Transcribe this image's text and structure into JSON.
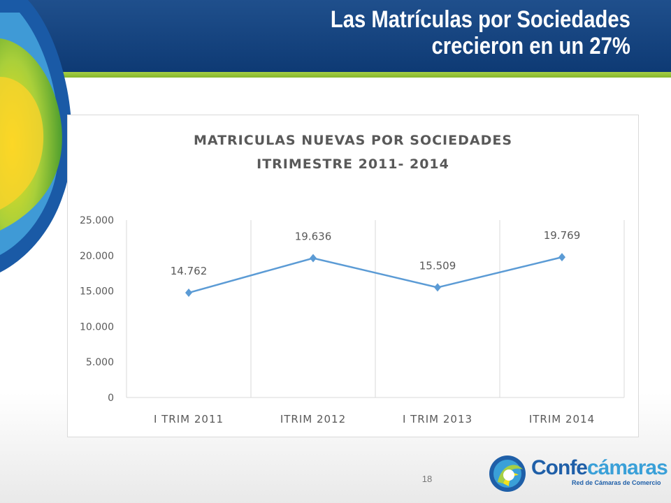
{
  "slide": {
    "title_line1": "Las Matrículas por Sociedades",
    "title_line2": "crecieron en un 27%",
    "page_number": "18"
  },
  "logo": {
    "name_part1": "Confe",
    "name_part2": "cámaras",
    "subtitle": "Red de Cámaras de Comercio"
  },
  "colors": {
    "header_blue": "#0e3a74",
    "header_green": "#9bc43a",
    "series_line": "#5b9bd5",
    "text_gray": "#595959",
    "grid": "#d9d9d9"
  },
  "chart_data": {
    "type": "line",
    "title": "MATRICULAS NUEVAS POR SOCIEDADES",
    "subtitle": "ITRIMESTRE 2011- 2014",
    "categories": [
      "I TRIM 2011",
      "ITRIM 2012",
      "I TRIM 2013",
      "ITRIM 2014"
    ],
    "series": [
      {
        "values": [
          14762,
          19636,
          15509,
          19769
        ],
        "labels": [
          "14.762",
          "19.636",
          "15.509",
          "19.769"
        ]
      }
    ],
    "yticks": [
      "0",
      "5.000",
      "10.000",
      "15.000",
      "20.000",
      "25.000"
    ],
    "ylim": [
      0,
      25000
    ],
    "ystep": 5000,
    "grid": "vertical",
    "legend": "none"
  }
}
